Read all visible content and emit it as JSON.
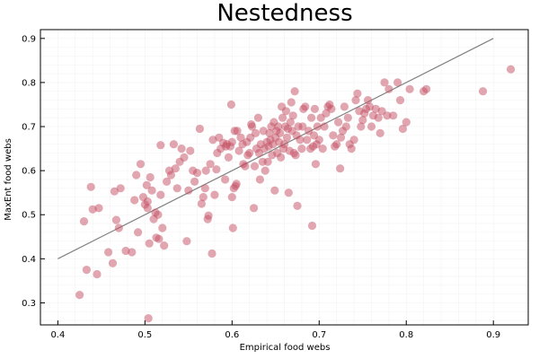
{
  "chart_data": {
    "type": "scatter",
    "title": "Nestedness",
    "xlabel": "Empirical food webs",
    "ylabel": "MaxEnt food webs",
    "xlim": [
      0.38,
      0.94
    ],
    "ylim": [
      0.25,
      0.92
    ],
    "xticks": [
      "0.4",
      "0.5",
      "0.6",
      "0.7",
      "0.8",
      "0.9"
    ],
    "yticks": [
      "0.3",
      "0.4",
      "0.5",
      "0.6",
      "0.7",
      "0.8",
      "0.9"
    ],
    "grid": true,
    "legend": "none",
    "point_color": "#c44e62",
    "line_color": "#808080",
    "reference_line": {
      "x": [
        0.4,
        0.9
      ],
      "y": [
        0.4,
        0.9
      ]
    },
    "points": [
      [
        0.425,
        0.318
      ],
      [
        0.43,
        0.485
      ],
      [
        0.433,
        0.375
      ],
      [
        0.438,
        0.563
      ],
      [
        0.44,
        0.512
      ],
      [
        0.445,
        0.365
      ],
      [
        0.447,
        0.515
      ],
      [
        0.458,
        0.415
      ],
      [
        0.463,
        0.39
      ],
      [
        0.465,
        0.553
      ],
      [
        0.467,
        0.488
      ],
      [
        0.47,
        0.47
      ],
      [
        0.472,
        0.56
      ],
      [
        0.478,
        0.418
      ],
      [
        0.485,
        0.415
      ],
      [
        0.488,
        0.533
      ],
      [
        0.49,
        0.59
      ],
      [
        0.492,
        0.46
      ],
      [
        0.495,
        0.615
      ],
      [
        0.498,
        0.54
      ],
      [
        0.5,
        0.523
      ],
      [
        0.502,
        0.567
      ],
      [
        0.503,
        0.53
      ],
      [
        0.503,
        0.515
      ],
      [
        0.504,
        0.265
      ],
      [
        0.505,
        0.435
      ],
      [
        0.506,
        0.585
      ],
      [
        0.508,
        0.555
      ],
      [
        0.51,
        0.49
      ],
      [
        0.512,
        0.505
      ],
      [
        0.513,
        0.448
      ],
      [
        0.515,
        0.5
      ],
      [
        0.516,
        0.445
      ],
      [
        0.518,
        0.545
      ],
      [
        0.518,
        0.658
      ],
      [
        0.52,
        0.47
      ],
      [
        0.522,
        0.43
      ],
      [
        0.525,
        0.575
      ],
      [
        0.528,
        0.6
      ],
      [
        0.53,
        0.59
      ],
      [
        0.533,
        0.66
      ],
      [
        0.535,
        0.605
      ],
      [
        0.537,
        0.56
      ],
      [
        0.54,
        0.62
      ],
      [
        0.542,
        0.65
      ],
      [
        0.545,
        0.63
      ],
      [
        0.548,
        0.44
      ],
      [
        0.55,
        0.555
      ],
      [
        0.552,
        0.645
      ],
      [
        0.555,
        0.6
      ],
      [
        0.557,
        0.575
      ],
      [
        0.56,
        0.595
      ],
      [
        0.563,
        0.695
      ],
      [
        0.565,
        0.525
      ],
      [
        0.567,
        0.54
      ],
      [
        0.569,
        0.56
      ],
      [
        0.57,
        0.6
      ],
      [
        0.572,
        0.49
      ],
      [
        0.573,
        0.498
      ],
      [
        0.575,
        0.615
      ],
      [
        0.577,
        0.412
      ],
      [
        0.578,
        0.67
      ],
      [
        0.58,
        0.545
      ],
      [
        0.582,
        0.603
      ],
      [
        0.583,
        0.64
      ],
      [
        0.585,
        0.675
      ],
      [
        0.587,
        0.65
      ],
      [
        0.59,
        0.663
      ],
      [
        0.592,
        0.58
      ],
      [
        0.593,
        0.655
      ],
      [
        0.594,
        0.66
      ],
      [
        0.596,
        0.63
      ],
      [
        0.598,
        0.655
      ],
      [
        0.599,
        0.75
      ],
      [
        0.6,
        0.54
      ],
      [
        0.6,
        0.665
      ],
      [
        0.601,
        0.47
      ],
      [
        0.602,
        0.56
      ],
      [
        0.603,
        0.69
      ],
      [
        0.604,
        0.565
      ],
      [
        0.605,
        0.57
      ],
      [
        0.606,
        0.69
      ],
      [
        0.608,
        0.645
      ],
      [
        0.61,
        0.675
      ],
      [
        0.612,
        0.66
      ],
      [
        0.613,
        0.615
      ],
      [
        0.615,
        0.61
      ],
      [
        0.617,
        0.665
      ],
      [
        0.618,
        0.635
      ],
      [
        0.62,
        0.64
      ],
      [
        0.621,
        0.675
      ],
      [
        0.622,
        0.705
      ],
      [
        0.623,
        0.7
      ],
      [
        0.625,
        0.515
      ],
      [
        0.626,
        0.61
      ],
      [
        0.627,
        0.685
      ],
      [
        0.628,
        0.65
      ],
      [
        0.63,
        0.72
      ],
      [
        0.631,
        0.64
      ],
      [
        0.632,
        0.58
      ],
      [
        0.633,
        0.66
      ],
      [
        0.635,
        0.62
      ],
      [
        0.636,
        0.69
      ],
      [
        0.637,
        0.65
      ],
      [
        0.638,
        0.6
      ],
      [
        0.64,
        0.665
      ],
      [
        0.641,
        0.62
      ],
      [
        0.642,
        0.655
      ],
      [
        0.643,
        0.685
      ],
      [
        0.644,
        0.67
      ],
      [
        0.645,
        0.7
      ],
      [
        0.646,
        0.635
      ],
      [
        0.647,
        0.66
      ],
      [
        0.648,
        0.71
      ],
      [
        0.649,
        0.555
      ],
      [
        0.65,
        0.675
      ],
      [
        0.651,
        0.69
      ],
      [
        0.652,
        0.64
      ],
      [
        0.653,
        0.7
      ],
      [
        0.654,
        0.665
      ],
      [
        0.655,
        0.685
      ],
      [
        0.656,
        0.63
      ],
      [
        0.657,
        0.745
      ],
      [
        0.658,
        0.72
      ],
      [
        0.659,
        0.65
      ],
      [
        0.66,
        0.66
      ],
      [
        0.661,
        0.7
      ],
      [
        0.662,
        0.735
      ],
      [
        0.663,
        0.675
      ],
      [
        0.664,
        0.695
      ],
      [
        0.665,
        0.55
      ],
      [
        0.666,
        0.645
      ],
      [
        0.667,
        0.71
      ],
      [
        0.668,
        0.755
      ],
      [
        0.669,
        0.69
      ],
      [
        0.67,
        0.725
      ],
      [
        0.671,
        0.64
      ],
      [
        0.672,
        0.78
      ],
      [
        0.673,
        0.635
      ],
      [
        0.674,
        0.68
      ],
      [
        0.675,
        0.52
      ],
      [
        0.676,
        0.7
      ],
      [
        0.678,
        0.67
      ],
      [
        0.68,
        0.65
      ],
      [
        0.681,
        0.7
      ],
      [
        0.682,
        0.74
      ],
      [
        0.684,
        0.745
      ],
      [
        0.686,
        0.67
      ],
      [
        0.688,
        0.69
      ],
      [
        0.69,
        0.65
      ],
      [
        0.691,
        0.72
      ],
      [
        0.692,
        0.475
      ],
      [
        0.693,
        0.655
      ],
      [
        0.694,
        0.68
      ],
      [
        0.695,
        0.74
      ],
      [
        0.696,
        0.615
      ],
      [
        0.697,
        0.66
      ],
      [
        0.698,
        0.7
      ],
      [
        0.7,
        0.67
      ],
      [
        0.702,
        0.72
      ],
      [
        0.704,
        0.65
      ],
      [
        0.706,
        0.7
      ],
      [
        0.708,
        0.73
      ],
      [
        0.71,
        0.745
      ],
      [
        0.712,
        0.75
      ],
      [
        0.714,
        0.74
      ],
      [
        0.716,
        0.68
      ],
      [
        0.718,
        0.655
      ],
      [
        0.72,
        0.66
      ],
      [
        0.722,
        0.71
      ],
      [
        0.724,
        0.605
      ],
      [
        0.725,
        0.675
      ],
      [
        0.727,
        0.69
      ],
      [
        0.729,
        0.745
      ],
      [
        0.731,
        0.7
      ],
      [
        0.733,
        0.72
      ],
      [
        0.735,
        0.66
      ],
      [
        0.737,
        0.65
      ],
      [
        0.74,
        0.67
      ],
      [
        0.742,
        0.76
      ],
      [
        0.744,
        0.775
      ],
      [
        0.746,
        0.735
      ],
      [
        0.748,
        0.7
      ],
      [
        0.75,
        0.715
      ],
      [
        0.752,
        0.73
      ],
      [
        0.754,
        0.74
      ],
      [
        0.756,
        0.76
      ],
      [
        0.758,
        0.745
      ],
      [
        0.76,
        0.7
      ],
      [
        0.762,
        0.725
      ],
      [
        0.765,
        0.74
      ],
      [
        0.768,
        0.72
      ],
      [
        0.77,
        0.685
      ],
      [
        0.772,
        0.735
      ],
      [
        0.775,
        0.8
      ],
      [
        0.778,
        0.725
      ],
      [
        0.78,
        0.785
      ],
      [
        0.785,
        0.725
      ],
      [
        0.79,
        0.8
      ],
      [
        0.793,
        0.76
      ],
      [
        0.796,
        0.695
      ],
      [
        0.8,
        0.71
      ],
      [
        0.804,
        0.785
      ],
      [
        0.82,
        0.78
      ],
      [
        0.823,
        0.785
      ],
      [
        0.888,
        0.78
      ],
      [
        0.92,
        0.83
      ]
    ]
  }
}
